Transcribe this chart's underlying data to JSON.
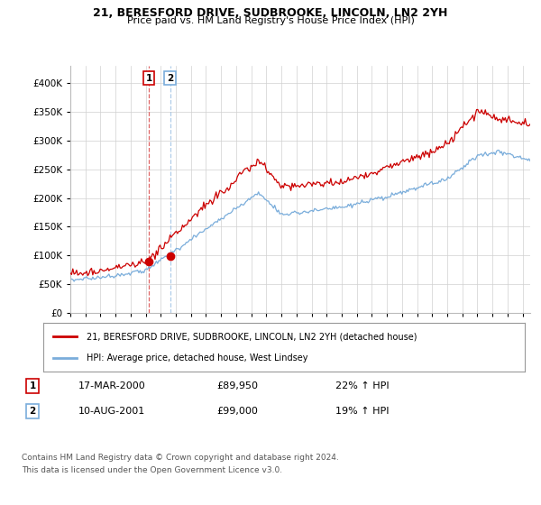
{
  "title1": "21, BERESFORD DRIVE, SUDBROOKE, LINCOLN, LN2 2YH",
  "title2": "Price paid vs. HM Land Registry's House Price Index (HPI)",
  "legend1": "21, BERESFORD DRIVE, SUDBROOKE, LINCOLN, LN2 2YH (detached house)",
  "legend2": "HPI: Average price, detached house, West Lindsey",
  "transaction1_date": "17-MAR-2000",
  "transaction1_price": "£89,950",
  "transaction1_hpi": "22% ↑ HPI",
  "transaction2_date": "10-AUG-2001",
  "transaction2_price": "£99,000",
  "transaction2_hpi": "19% ↑ HPI",
  "footnote1": "Contains HM Land Registry data © Crown copyright and database right 2024.",
  "footnote2": "This data is licensed under the Open Government Licence v3.0.",
  "red_color": "#cc0000",
  "blue_color": "#7aaddb",
  "marker1_year": 2000.21,
  "marker1_price": 89950,
  "marker2_year": 2001.61,
  "marker2_price": 99000,
  "ylim_min": 0,
  "ylim_max": 430000,
  "yticks": [
    0,
    50000,
    100000,
    150000,
    200000,
    250000,
    300000,
    350000,
    400000
  ],
  "ytick_labels": [
    "£0",
    "£50K",
    "£100K",
    "£150K",
    "£200K",
    "£250K",
    "£300K",
    "£350K",
    "£400K"
  ],
  "xlim_min": 1995,
  "xlim_max": 2025.5
}
